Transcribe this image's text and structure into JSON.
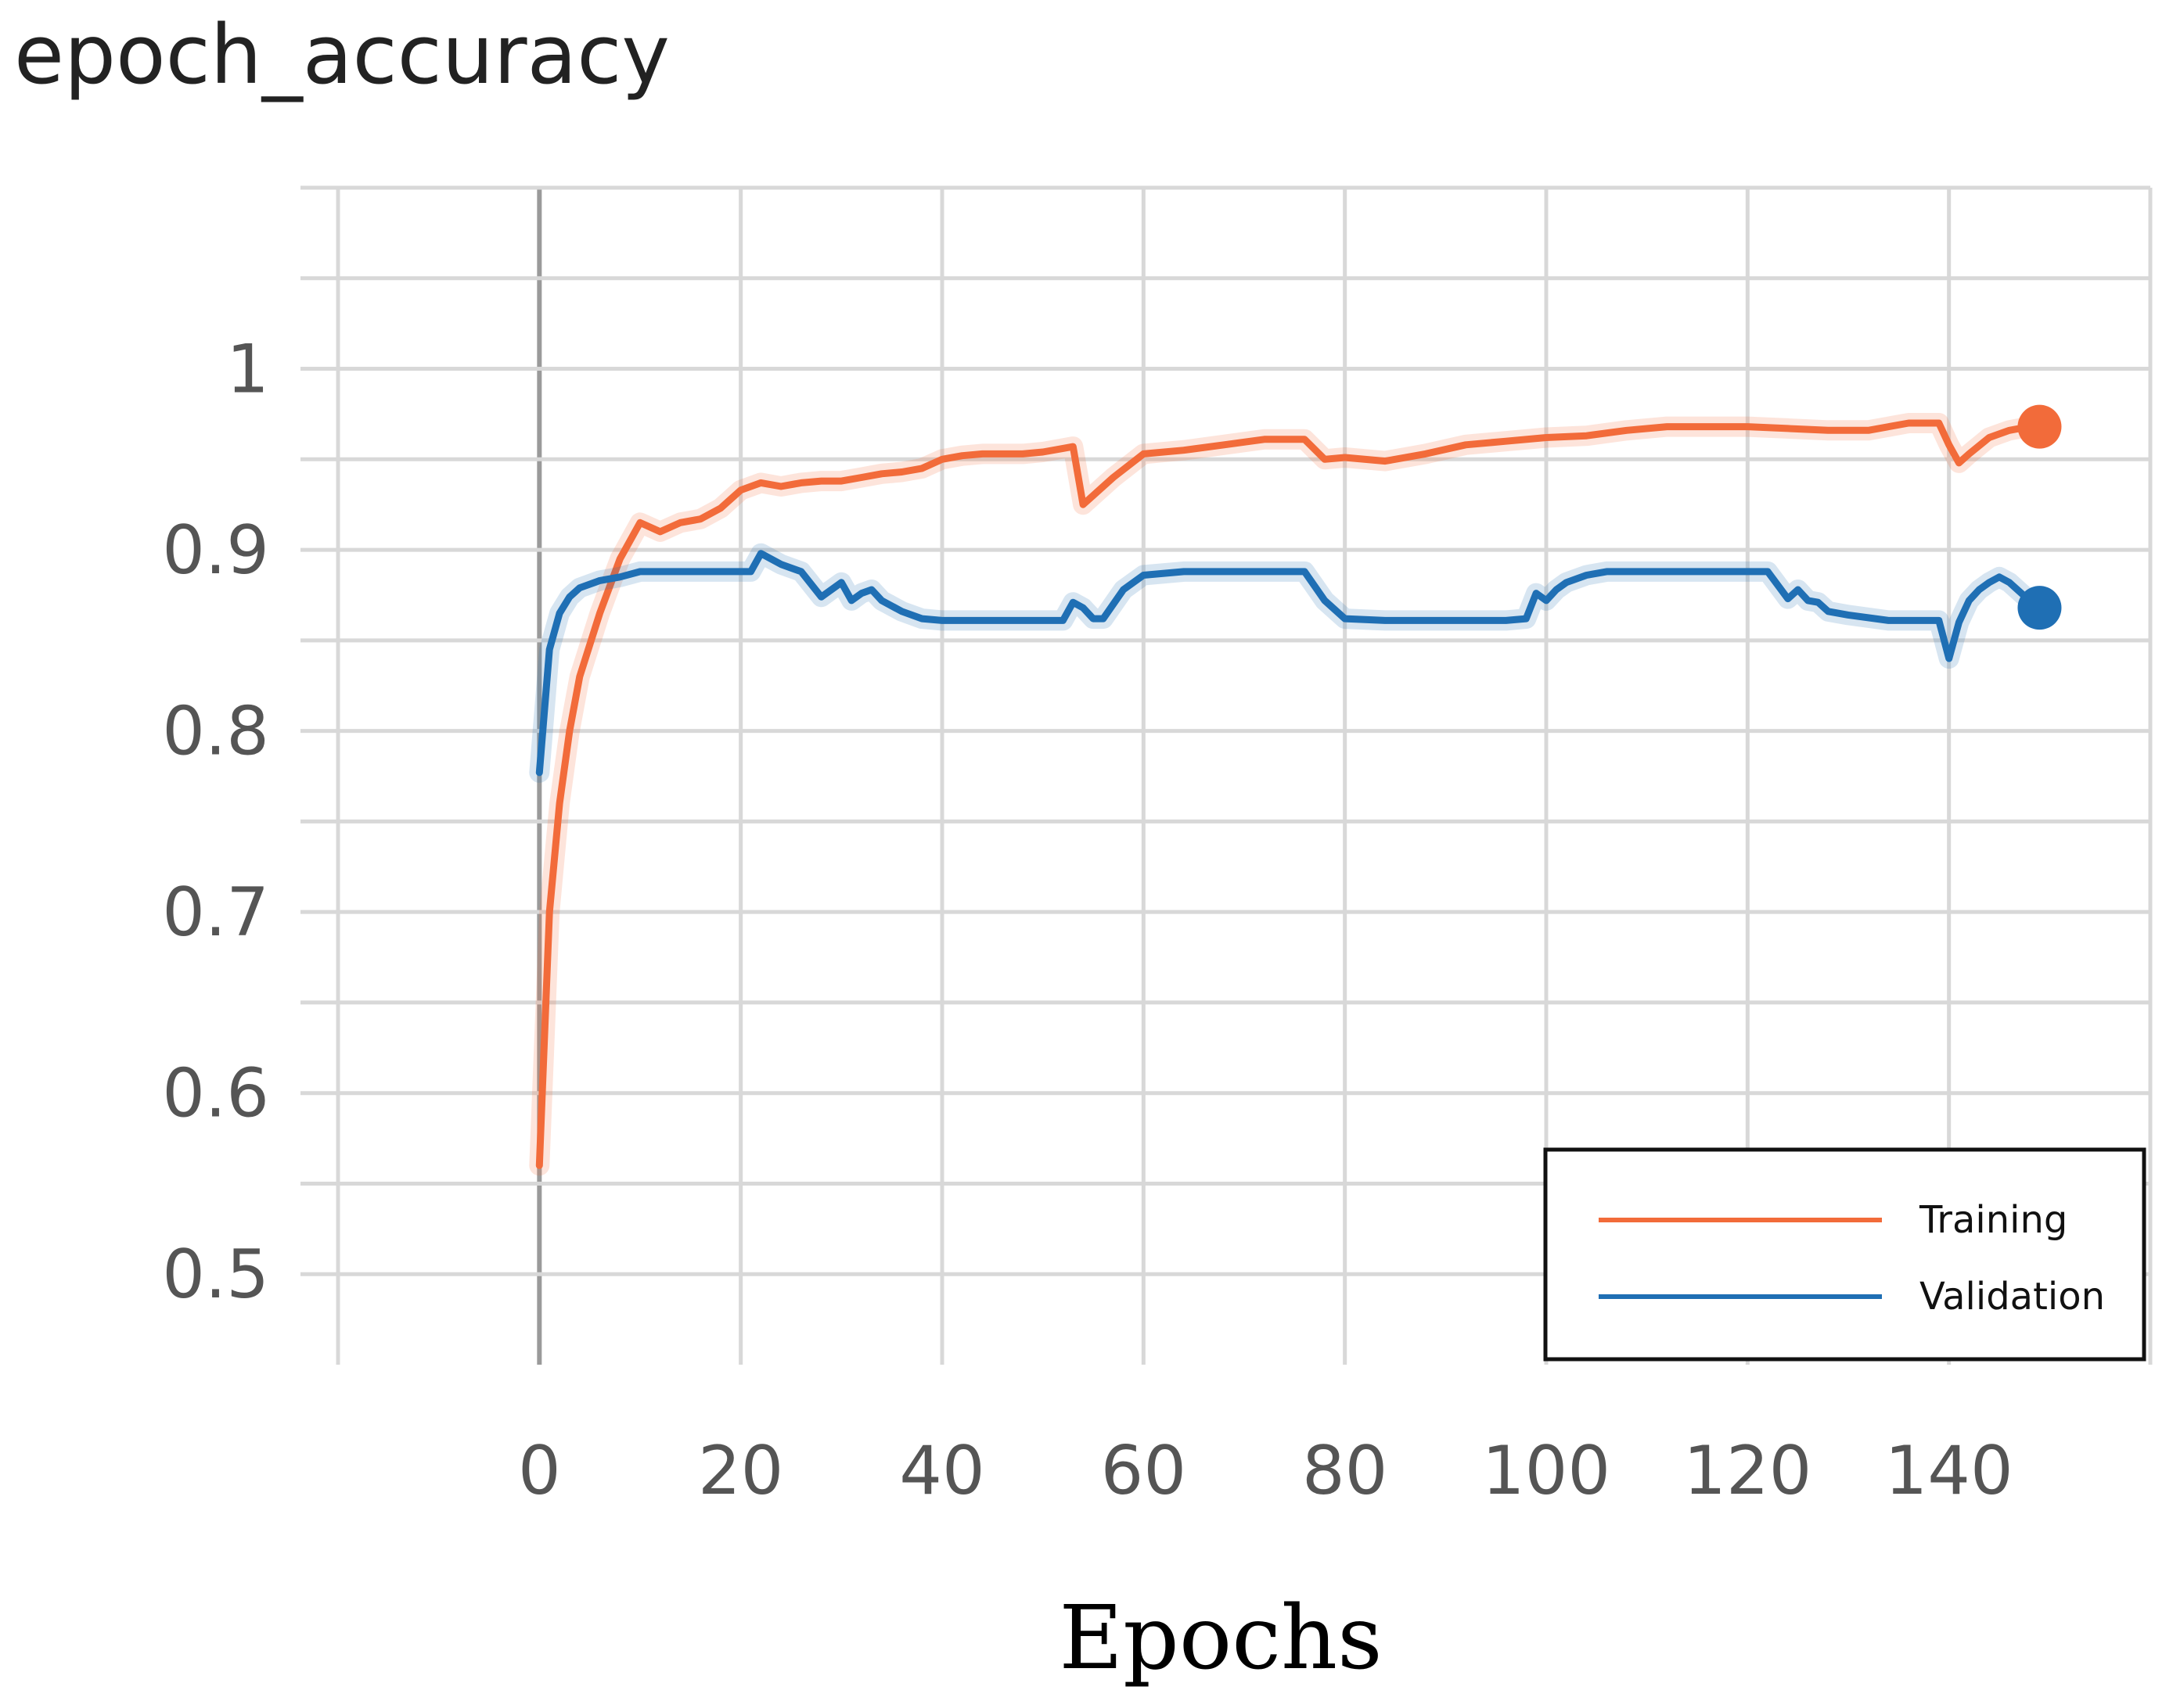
{
  "chart_data": {
    "type": "line",
    "title": "epoch_accuracy",
    "xlabel": "Epochs",
    "ylabel": "",
    "xlim": [
      -20,
      160
    ],
    "ylim": [
      0.45,
      1.1
    ],
    "xticks": [
      0,
      20,
      40,
      60,
      80,
      100,
      120,
      140
    ],
    "yticks": [
      0.5,
      0.6,
      0.7,
      0.8,
      0.9,
      1
    ],
    "ytick_labels": [
      "0.5",
      "0.6",
      "0.7",
      "0.8",
      "0.9",
      "1"
    ],
    "grid": true,
    "legend_position": "bottom-right",
    "series": [
      {
        "name": "Training",
        "color": "#f26b3a",
        "end_marker": true,
        "x": [
          0,
          1,
          2,
          3,
          4,
          6,
          8,
          10,
          12,
          14,
          16,
          18,
          20,
          22,
          24,
          26,
          28,
          30,
          32,
          34,
          36,
          38,
          40,
          42,
          44,
          46,
          48,
          50,
          52,
          53,
          54,
          55,
          57,
          60,
          64,
          68,
          72,
          76,
          78,
          80,
          84,
          88,
          92,
          96,
          100,
          104,
          108,
          112,
          116,
          120,
          124,
          128,
          132,
          136,
          139,
          140,
          141,
          142,
          144,
          146,
          148,
          149
        ],
        "y": [
          0.56,
          0.7,
          0.76,
          0.8,
          0.83,
          0.865,
          0.895,
          0.915,
          0.91,
          0.915,
          0.917,
          0.923,
          0.933,
          0.937,
          0.935,
          0.937,
          0.938,
          0.938,
          0.94,
          0.942,
          0.943,
          0.945,
          0.95,
          0.952,
          0.953,
          0.953,
          0.953,
          0.954,
          0.956,
          0.957,
          0.925,
          0.93,
          0.94,
          0.953,
          0.955,
          0.958,
          0.961,
          0.961,
          0.95,
          0.951,
          0.949,
          0.953,
          0.958,
          0.96,
          0.962,
          0.963,
          0.966,
          0.968,
          0.968,
          0.968,
          0.967,
          0.966,
          0.966,
          0.97,
          0.97,
          0.958,
          0.948,
          0.953,
          0.962,
          0.966,
          0.968,
          0.968
        ]
      },
      {
        "name": "Validation",
        "color": "#1f6fb4",
        "end_marker": true,
        "x": [
          0,
          1,
          2,
          3,
          4,
          6,
          8,
          10,
          14,
          18,
          21,
          22,
          24,
          26,
          28,
          30,
          31,
          32,
          33,
          34,
          36,
          38,
          40,
          44,
          48,
          52,
          53,
          54,
          55,
          56,
          58,
          60,
          64,
          68,
          72,
          76,
          78,
          80,
          84,
          88,
          92,
          96,
          98,
          99,
          100,
          101,
          102,
          104,
          106,
          110,
          114,
          118,
          122,
          124,
          125,
          126,
          127,
          128,
          130,
          134,
          138,
          139,
          140,
          141,
          142,
          143,
          144,
          145,
          146,
          147,
          148,
          149
        ],
        "y": [
          0.777,
          0.845,
          0.865,
          0.874,
          0.879,
          0.883,
          0.885,
          0.888,
          0.888,
          0.888,
          0.888,
          0.898,
          0.892,
          0.888,
          0.874,
          0.882,
          0.872,
          0.876,
          0.878,
          0.872,
          0.866,
          0.862,
          0.861,
          0.861,
          0.861,
          0.861,
          0.871,
          0.868,
          0.862,
          0.862,
          0.878,
          0.886,
          0.888,
          0.888,
          0.888,
          0.888,
          0.872,
          0.862,
          0.861,
          0.861,
          0.861,
          0.861,
          0.862,
          0.876,
          0.872,
          0.878,
          0.882,
          0.886,
          0.888,
          0.888,
          0.888,
          0.888,
          0.888,
          0.873,
          0.878,
          0.872,
          0.871,
          0.866,
          0.864,
          0.861,
          0.861,
          0.861,
          0.84,
          0.86,
          0.872,
          0.878,
          0.882,
          0.885,
          0.882,
          0.877,
          0.872,
          0.868
        ]
      }
    ]
  }
}
